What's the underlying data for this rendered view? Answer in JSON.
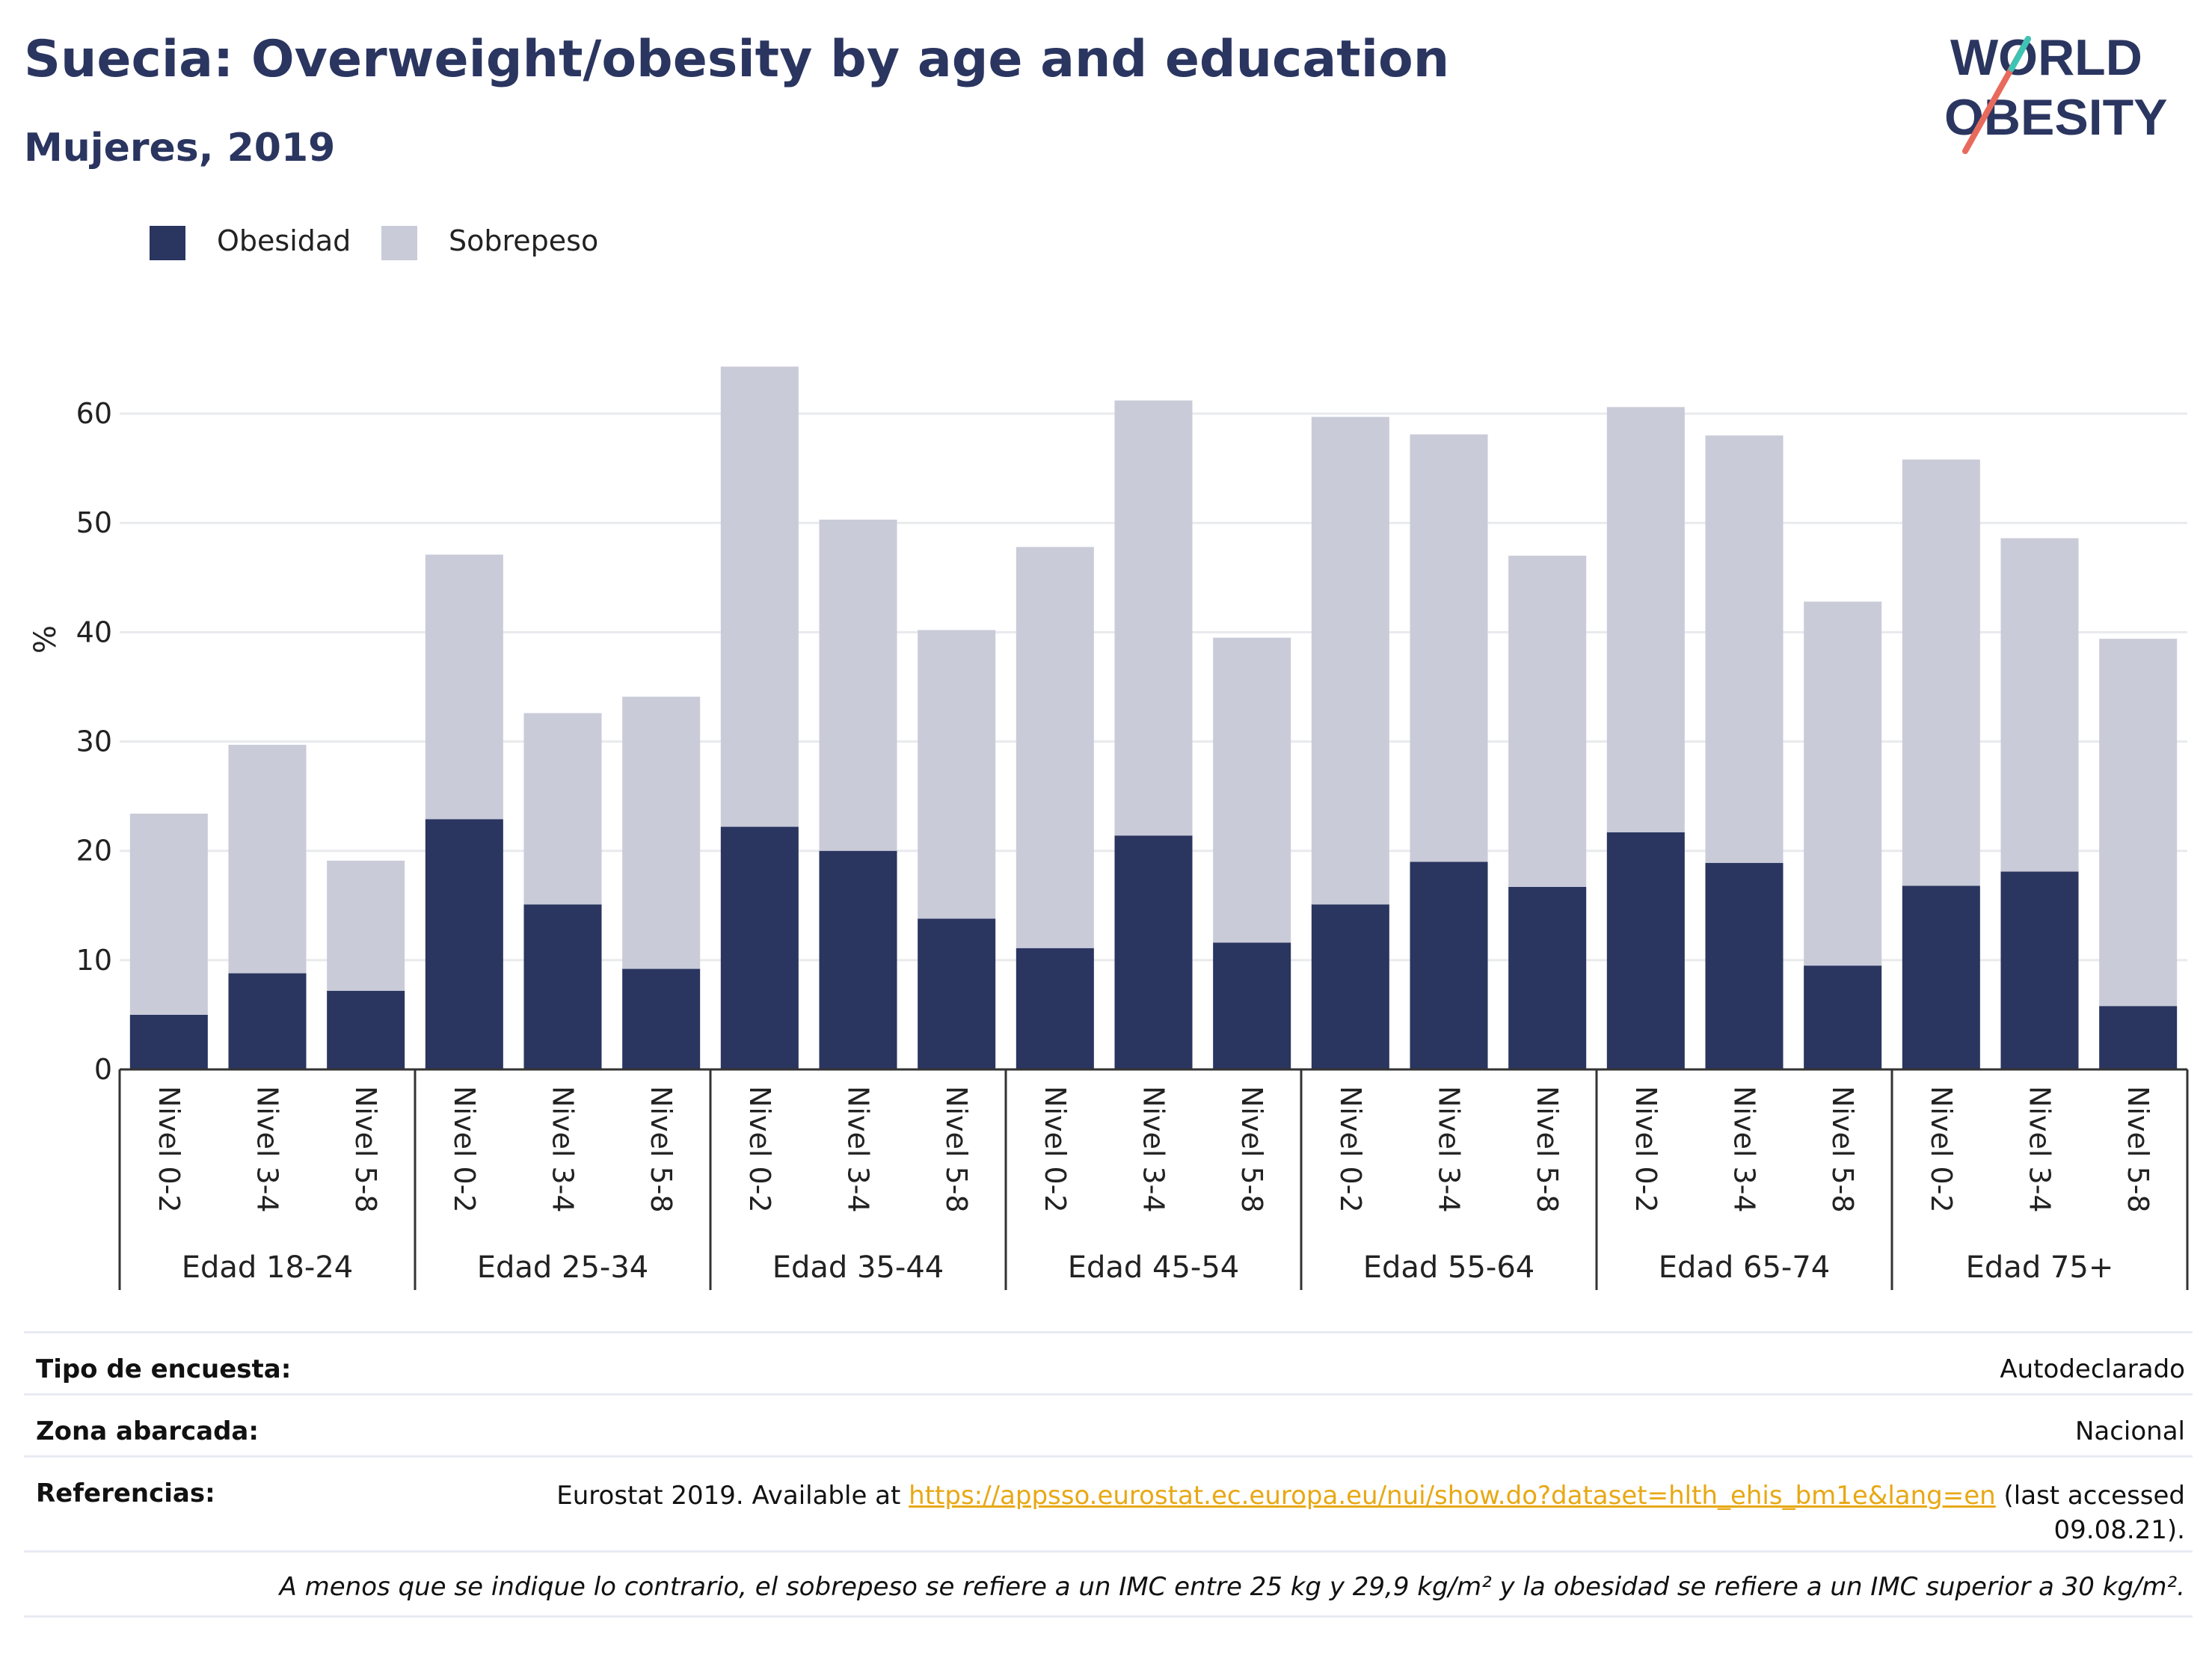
{
  "title": "Suecia: Overweight/obesity by age and education",
  "subtitle": "Mujeres, 2019",
  "logo": {
    "line1": "WORLD",
    "line2": "OBESITY",
    "colors": [
      "#2a3560",
      "#e86a5c",
      "#3cc4b4"
    ]
  },
  "legend": [
    {
      "label": "Obesidad",
      "color": "#2a3560"
    },
    {
      "label": "Sobrepeso",
      "color": "#c9cbd8"
    }
  ],
  "chart_data": {
    "type": "bar",
    "stacked": true,
    "ylabel": "%",
    "ylim": [
      0,
      65
    ],
    "yticks": [
      0,
      10,
      20,
      30,
      40,
      50,
      60
    ],
    "grid": true,
    "legend_position": "top-left",
    "groups": [
      "Edad 18-24",
      "Edad 25-34",
      "Edad 35-44",
      "Edad 45-54",
      "Edad 55-64",
      "Edad 65-74",
      "Edad 75+"
    ],
    "levels": [
      "Nivel 0-2",
      "Nivel 3-4",
      "Nivel 5-8"
    ],
    "series": [
      {
        "name": "Obesidad",
        "color": "#2a3560",
        "values": [
          5.0,
          8.8,
          7.2,
          22.9,
          15.1,
          9.2,
          22.2,
          20.0,
          13.8,
          11.1,
          21.4,
          11.6,
          15.1,
          19.0,
          16.7,
          21.7,
          18.9,
          9.5,
          16.8,
          18.1,
          5.8
        ]
      },
      {
        "name": "Sobrepeso",
        "color": "#c9cbd8",
        "values": [
          18.4,
          20.9,
          11.9,
          24.2,
          17.5,
          24.9,
          42.1,
          30.3,
          26.4,
          36.7,
          39.8,
          27.9,
          44.6,
          39.1,
          30.3,
          38.9,
          39.1,
          33.3,
          39.0,
          30.5,
          33.6
        ]
      }
    ]
  },
  "info": {
    "survey_key": "Tipo de encuesta:",
    "survey_val": "Autodeclarado",
    "area_key": "Zona abarcada:",
    "area_val": "Nacional",
    "ref_key": "Referencias:",
    "ref_prefix": "Eurostat 2019. Available at ",
    "ref_link": "https://appsso.eurostat.ec.europa.eu/nui/show.do?dataset=hlth_ehis_bm1e&lang=en",
    "ref_suffix": " (last accessed",
    "ref_date": "09.08.21).",
    "note": "A menos que se indique lo contrario, el sobrepeso se refiere a un IMC entre 25 kg y 29,9 kg/m² y la obesidad se refiere a un IMC superior a 30 kg/m²."
  }
}
